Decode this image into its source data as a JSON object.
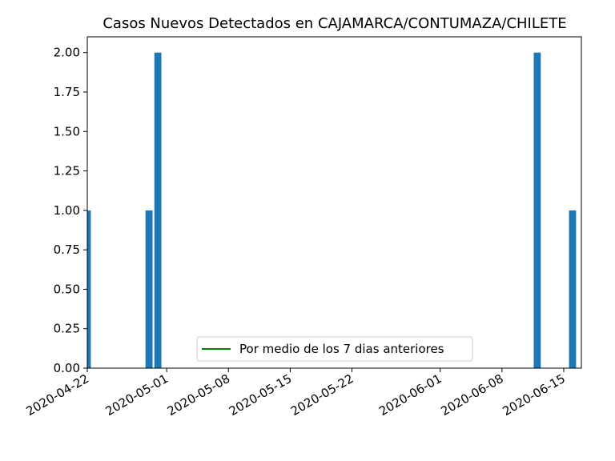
{
  "chart_data": {
    "type": "bar",
    "title": "Casos Nuevos Detectados en CAJAMARCA/CONTUMAZA/CHILETE",
    "xlabel": "",
    "ylabel": "",
    "xlim": [
      "2020-04-22",
      "2020-06-17"
    ],
    "ylim": [
      0,
      2.1
    ],
    "yticks": [
      0.0,
      0.25,
      0.5,
      0.75,
      1.0,
      1.25,
      1.5,
      1.75,
      2.0
    ],
    "ytick_labels": [
      "0.00",
      "0.25",
      "0.50",
      "0.75",
      "1.00",
      "1.25",
      "1.50",
      "1.75",
      "2.00"
    ],
    "xticks": [
      "2020-04-22",
      "2020-05-01",
      "2020-05-08",
      "2020-05-15",
      "2020-05-22",
      "2020-06-01",
      "2020-06-08",
      "2020-06-15"
    ],
    "bars": [
      {
        "date": "2020-04-22",
        "value": 1
      },
      {
        "date": "2020-04-29",
        "value": 1
      },
      {
        "date": "2020-04-30",
        "value": 2
      },
      {
        "date": "2020-06-12",
        "value": 2
      },
      {
        "date": "2020-06-16",
        "value": 1
      }
    ],
    "series": [
      {
        "name": "Por medio de los 7 dias anteriores",
        "type": "line",
        "color": "#008000",
        "values": []
      }
    ],
    "bar_color": "#1f77b4",
    "grid": false,
    "legend_position": "lower center"
  }
}
